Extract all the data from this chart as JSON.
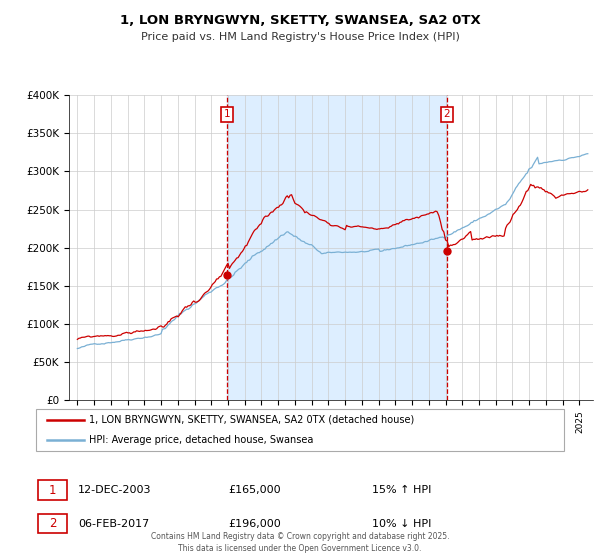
{
  "title": "1, LON BRYNGWYN, SKETTY, SWANSEA, SA2 0TX",
  "subtitle": "Price paid vs. HM Land Registry's House Price Index (HPI)",
  "legend_entry1": "1, LON BRYNGWYN, SKETTY, SWANSEA, SA2 0TX (detached house)",
  "legend_entry2": "HPI: Average price, detached house, Swansea",
  "footer": "Contains HM Land Registry data © Crown copyright and database right 2025.\nThis data is licensed under the Open Government Licence v3.0.",
  "transaction1_label": "1",
  "transaction1_date": "12-DEC-2003",
  "transaction1_price": "£165,000",
  "transaction1_hpi": "15% ↑ HPI",
  "transaction2_label": "2",
  "transaction2_date": "06-FEB-2017",
  "transaction2_price": "£196,000",
  "transaction2_hpi": "10% ↓ HPI",
  "ylim": [
    0,
    400000
  ],
  "yticks": [
    0,
    50000,
    100000,
    150000,
    200000,
    250000,
    300000,
    350000,
    400000
  ],
  "ytick_labels": [
    "£0",
    "£50K",
    "£100K",
    "£150K",
    "£200K",
    "£250K",
    "£300K",
    "£350K",
    "£400K"
  ],
  "red_color": "#cc0000",
  "blue_color": "#7ab0d4",
  "background_color": "#ffffff",
  "grid_color": "#cccccc",
  "shade_color": "#ddeeff",
  "transaction1_x": 2003.95,
  "transaction1_y": 165000,
  "transaction2_x": 2017.09,
  "transaction2_y": 196000,
  "xmin": 1994.5,
  "xmax": 2025.8,
  "xticks": [
    1995,
    1996,
    1997,
    1998,
    1999,
    2000,
    2001,
    2002,
    2003,
    2004,
    2005,
    2006,
    2007,
    2008,
    2009,
    2010,
    2011,
    2012,
    2013,
    2014,
    2015,
    2016,
    2017,
    2018,
    2019,
    2020,
    2021,
    2022,
    2023,
    2024,
    2025
  ]
}
